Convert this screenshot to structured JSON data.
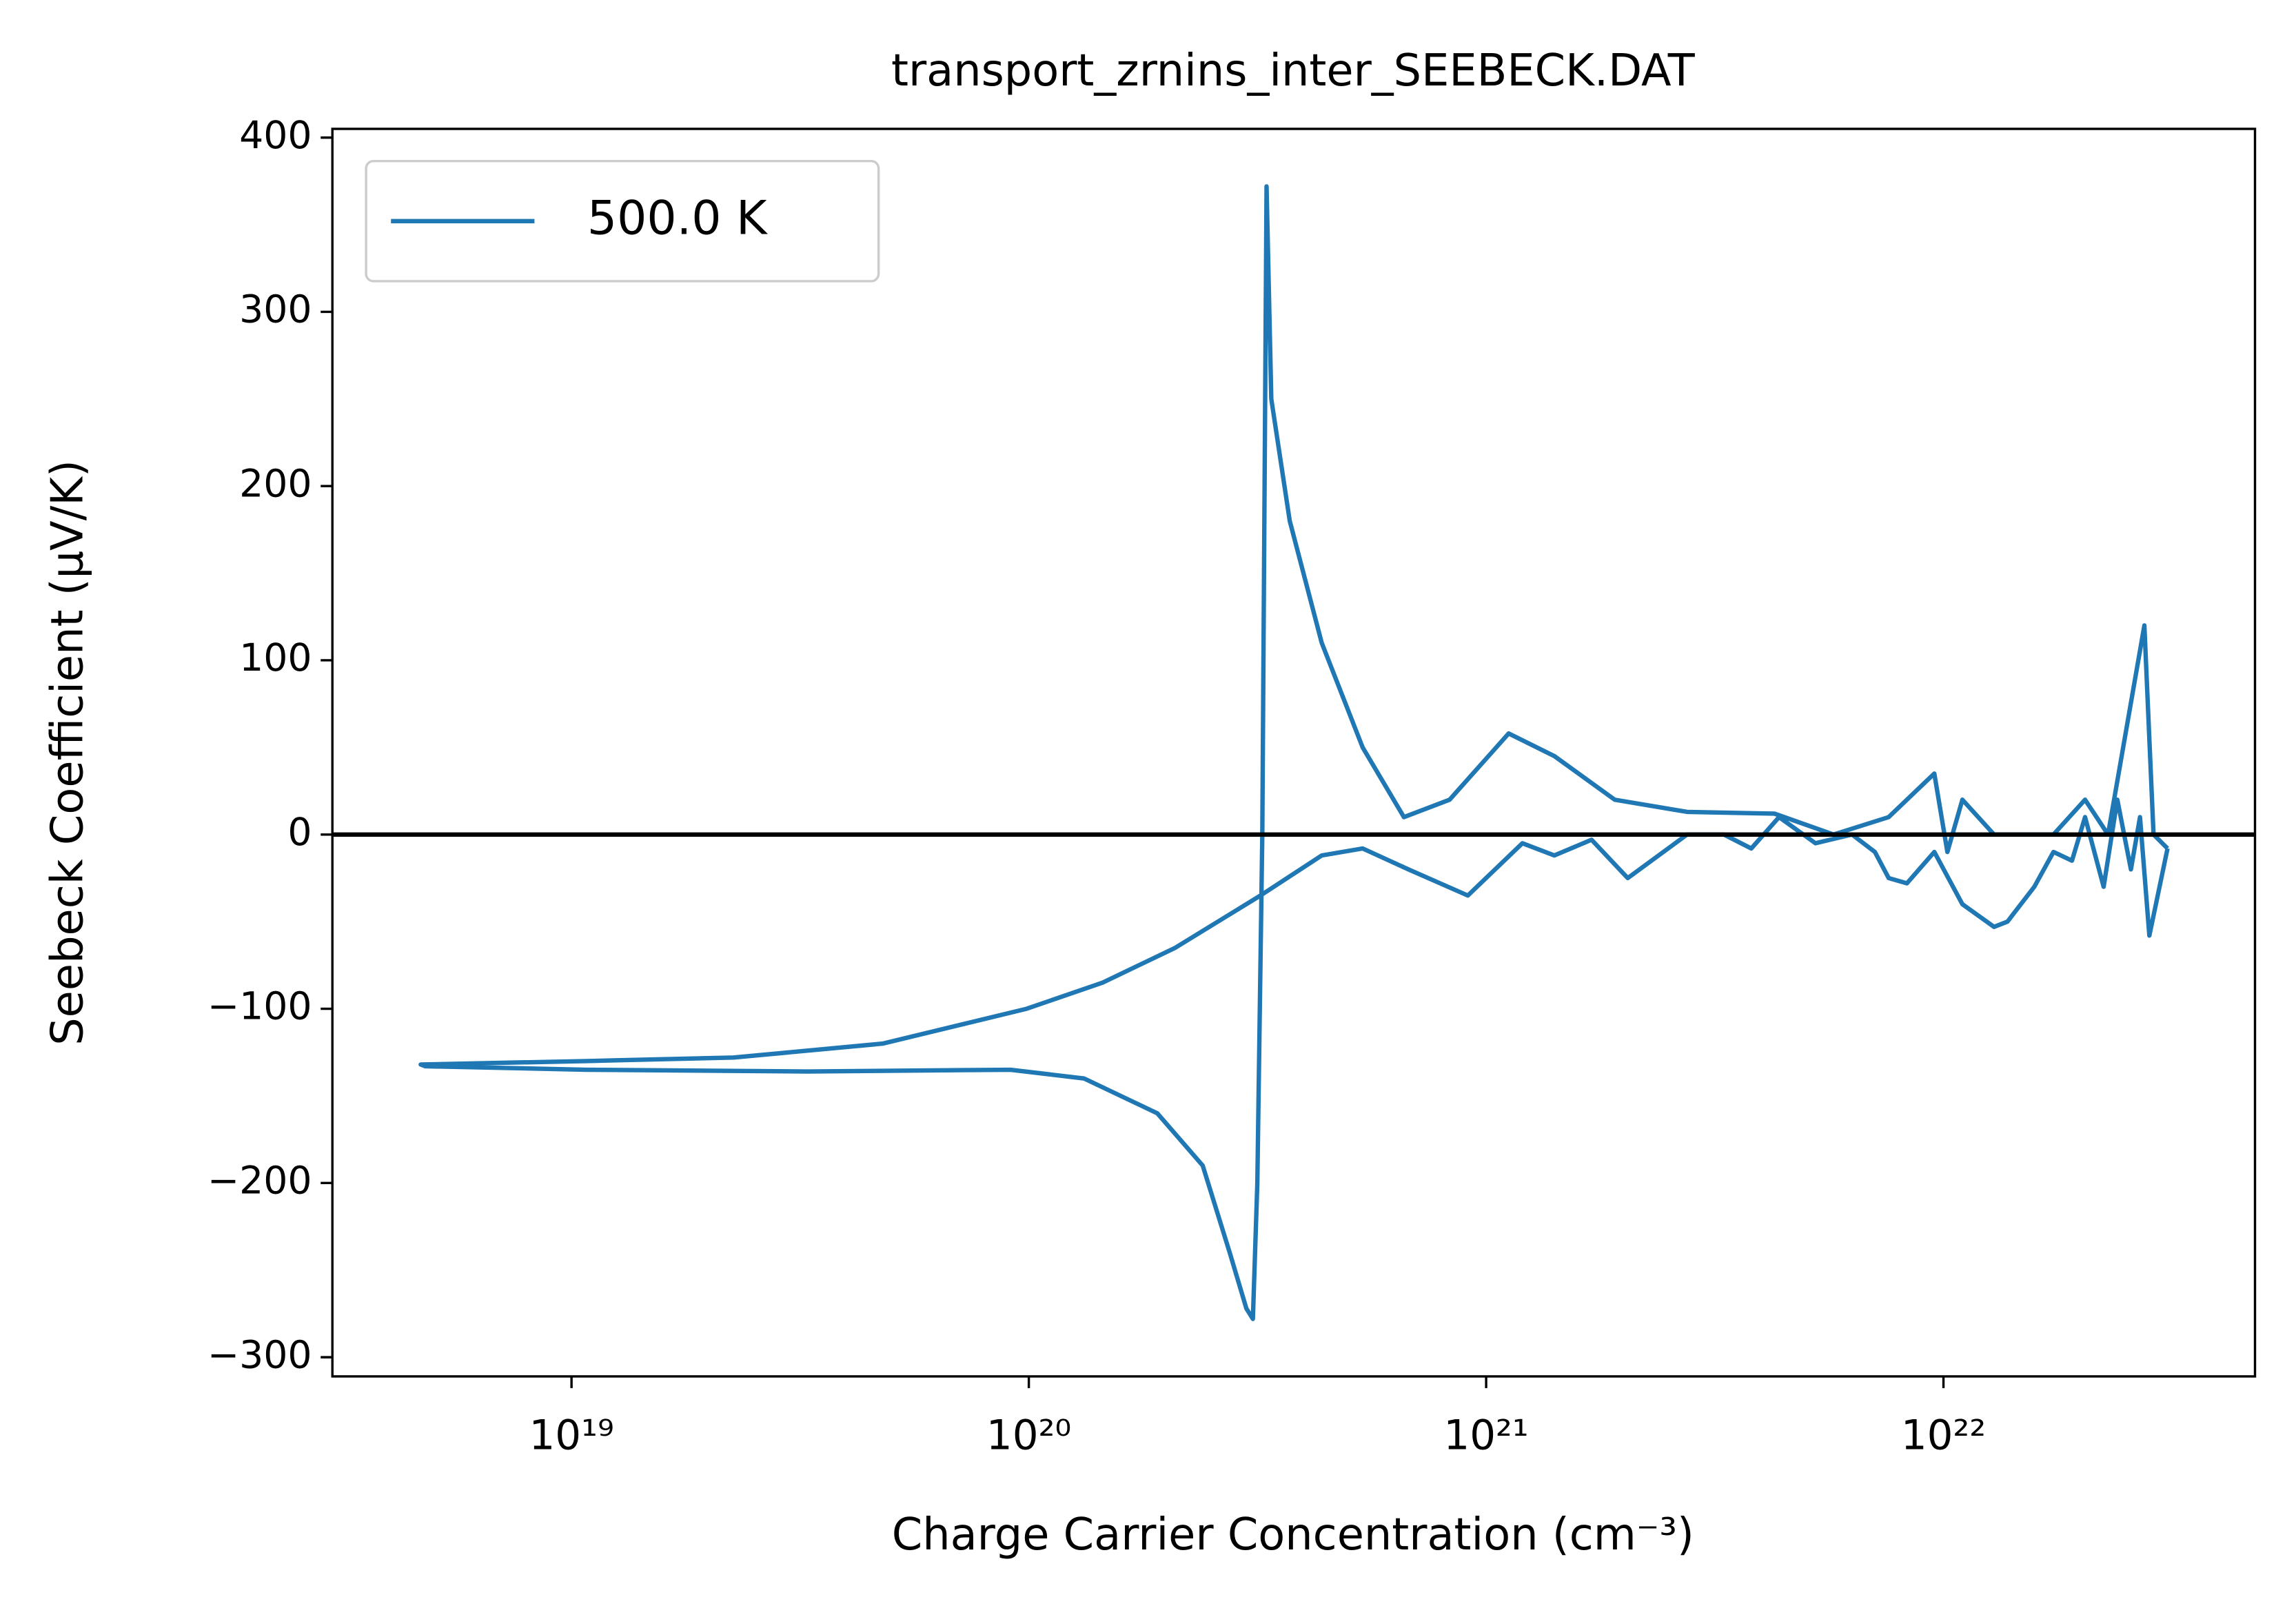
{
  "chart_data": {
    "type": "line",
    "title": "transport_zrnins_inter_SEEBECK.DAT",
    "x_label": "Charge Carrier Concentration (cm⁻³)",
    "y_label": "Seebeck Coefficient (μV/K)",
    "x_scale": "log",
    "legend": "upper left",
    "axhline": 0,
    "axhline_color": "#000000",
    "xlim": [
      3e+18,
      4.8e+22
    ],
    "ylim": [
      -311,
      405
    ],
    "xticks": [
      {
        "value": 1e+19,
        "label": "10¹⁹"
      },
      {
        "value": 1e+20,
        "label": "10²⁰"
      },
      {
        "value": 1e+21,
        "label": "10²¹"
      },
      {
        "value": 1e+22,
        "label": "10²²"
      }
    ],
    "yticks": [
      {
        "value": -300,
        "label": "−300"
      },
      {
        "value": -200,
        "label": "−200"
      },
      {
        "value": -100,
        "label": "−100"
      },
      0,
      100,
      200,
      300,
      400
    ],
    "series": [
      {
        "name": "500.0 K",
        "color": "#1f77b4",
        "x": [
          3.09e+22,
          2.82e+22,
          2.69e+22,
          2.57e+22,
          2.4e+22,
          2.24e+22,
          2.04e+22,
          1.91e+22,
          1.74e+22,
          1.58e+22,
          1.38e+22,
          1.29e+22,
          1.1e+22,
          9.55e+21,
          8.32e+21,
          7.59e+21,
          7.08e+21,
          6.31e+21,
          5.25e+21,
          4.37e+21,
          3.8e+21,
          3.31e+21,
          2.75e+21,
          2.04e+21,
          1.7e+21,
          1.41e+21,
          1.2e+21,
          9.12e+20,
          6.76e+20,
          5.37e+20,
          4.37e+20,
          3.21e+20,
          2.09e+20,
          1.45e+20,
          9.89e+19,
          4.79e+19,
          2.26e+19,
          1.08e+19,
          4.68e+18,
          4.79e+18,
          1.08e+19,
          3.27e+19,
          9.12e+19,
          1.32e+20,
          1.91e+20,
          2.4e+20,
          2.75e+20,
          2.99e+20,
          3.09e+20,
          3.16e+20,
          3.24e+20,
          3.31e+20,
          3.39e+20,
          3.72e+20,
          4.37e+20,
          5.37e+20,
          6.61e+20,
          8.32e+20,
          1.12e+21,
          1.41e+21,
          1.91e+21,
          2.75e+21,
          4.27e+21,
          5.75e+21,
          7.59e+21,
          9.55e+21,
          1.02e+22,
          1.1e+22,
          1.29e+22,
          1.74e+22,
          2.04e+22,
          2.29e+22,
          2.75e+22,
          2.88e+22,
          3.09e+22
        ],
        "values": [
          -8,
          -58,
          10,
          -20,
          20,
          -30,
          10,
          -15,
          -10,
          -30,
          -50,
          -53,
          -40,
          -10,
          -28,
          -25,
          -10,
          0,
          -5,
          10,
          -8,
          0,
          0,
          -25,
          -3,
          -12,
          -5,
          -35,
          -20,
          -8,
          -12,
          -35,
          -65,
          -85,
          -100,
          -120,
          -128,
          -130,
          -132,
          -133,
          -135,
          -136,
          -135,
          -140,
          -160,
          -190,
          -240,
          -272,
          -278,
          -200,
          0,
          372,
          250,
          180,
          110,
          50,
          10,
          20,
          58,
          45,
          20,
          13,
          12,
          0,
          10,
          35,
          -10,
          20,
          0,
          0,
          20,
          0,
          120,
          0,
          -8
        ]
      }
    ]
  }
}
